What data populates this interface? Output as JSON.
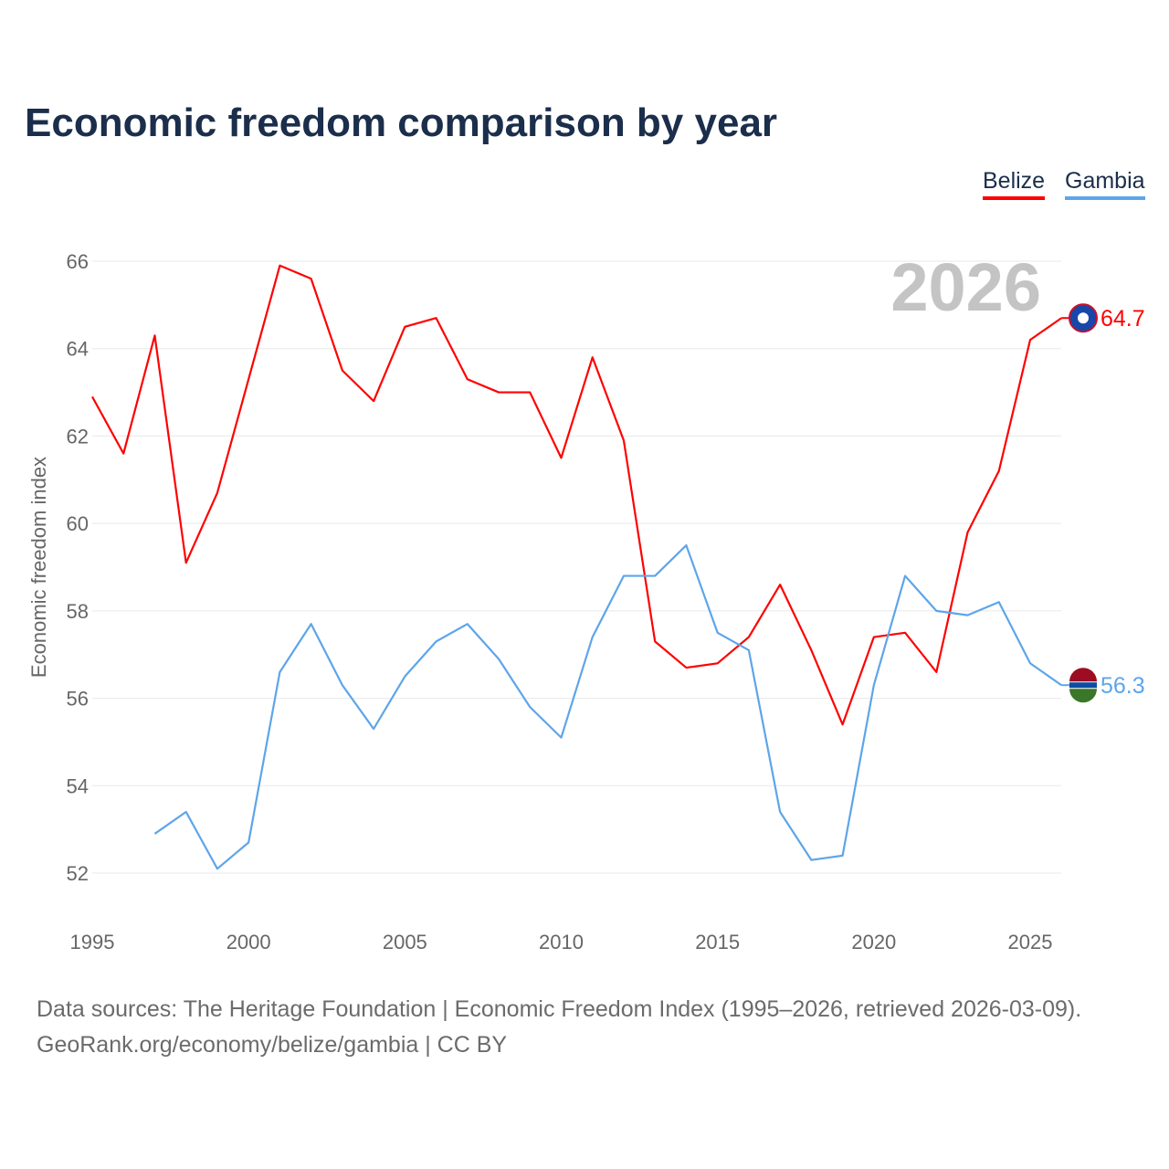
{
  "title": "Economic freedom comparison by year",
  "source_line1": "Data sources: The Heritage Foundation | Economic Freedom Index (1995–2026, retrieved 2026-03-09).",
  "source_line2": "GeoRank.org/economy/belize/gambia | CC BY",
  "chart_data": {
    "type": "line",
    "title": "Economic freedom comparison by year",
    "xlabel": "",
    "ylabel": "Economic freedom index",
    "year_label": "2026",
    "xlim": [
      1995,
      2026
    ],
    "ylim": [
      51,
      67
    ],
    "xticks": [
      1995,
      2000,
      2005,
      2010,
      2015,
      2020,
      2025
    ],
    "yticks": [
      52,
      54,
      56,
      58,
      60,
      62,
      64,
      66
    ],
    "grid": true,
    "legend": "top-right",
    "series": [
      {
        "name": "Belize",
        "color": "#ff0000",
        "end_label": "64.7",
        "x": [
          1995,
          1996,
          1997,
          1998,
          1999,
          2000,
          2001,
          2002,
          2003,
          2004,
          2005,
          2006,
          2007,
          2008,
          2009,
          2010,
          2011,
          2012,
          2013,
          2014,
          2015,
          2016,
          2017,
          2018,
          2019,
          2020,
          2021,
          2022,
          2023,
          2024,
          2025,
          2026
        ],
        "values": [
          62.9,
          61.6,
          64.3,
          59.1,
          60.7,
          63.3,
          65.9,
          65.6,
          63.5,
          62.8,
          64.5,
          64.7,
          63.3,
          63.0,
          63.0,
          61.5,
          63.8,
          61.9,
          57.3,
          56.7,
          56.8,
          57.4,
          58.6,
          57.1,
          55.4,
          57.4,
          57.5,
          56.6,
          59.8,
          61.2,
          64.2,
          64.7
        ]
      },
      {
        "name": "Gambia",
        "color": "#5da5ea",
        "end_label": "56.3",
        "x": [
          1997,
          1998,
          1999,
          2000,
          2001,
          2002,
          2003,
          2004,
          2005,
          2006,
          2007,
          2008,
          2009,
          2010,
          2011,
          2012,
          2013,
          2014,
          2015,
          2016,
          2017,
          2018,
          2019,
          2020,
          2021,
          2022,
          2023,
          2024,
          2025,
          2026
        ],
        "values": [
          52.9,
          53.4,
          52.1,
          52.7,
          56.6,
          57.7,
          56.3,
          55.3,
          56.5,
          57.3,
          57.7,
          56.9,
          55.8,
          55.1,
          57.4,
          58.8,
          58.8,
          59.5,
          57.5,
          57.1,
          53.4,
          52.3,
          52.4,
          56.3,
          58.8,
          58.0,
          57.9,
          58.2,
          56.8,
          56.3
        ]
      }
    ]
  }
}
